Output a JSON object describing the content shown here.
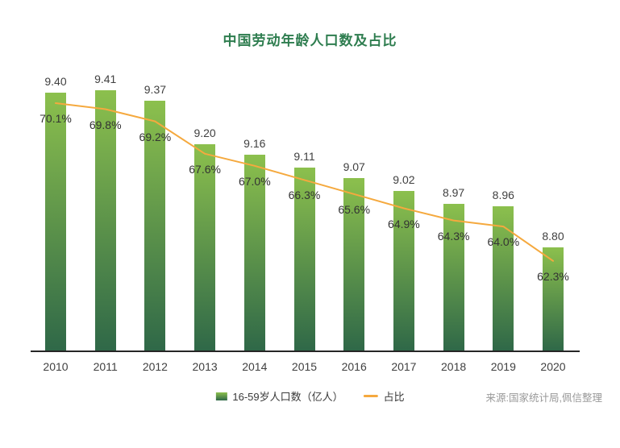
{
  "chart_data": {
    "type": "bar",
    "title": "中国劳动年龄人口数及占比",
    "categories": [
      "2010",
      "2011",
      "2012",
      "2013",
      "2014",
      "2015",
      "2016",
      "2017",
      "2018",
      "2019",
      "2020"
    ],
    "series": [
      {
        "name": "16-59岁人口数（亿人）",
        "type": "bar",
        "values": [
          9.4,
          9.41,
          9.37,
          9.2,
          9.16,
          9.11,
          9.07,
          9.02,
          8.97,
          8.96,
          8.8
        ],
        "data_labels": [
          "9.40",
          "9.41",
          "9.37",
          "9.20",
          "9.16",
          "9.11",
          "9.07",
          "9.02",
          "8.97",
          "8.96",
          "8.80"
        ]
      },
      {
        "name": "占比",
        "type": "line",
        "unit": "%",
        "values": [
          70.1,
          69.8,
          69.2,
          67.6,
          67.0,
          66.3,
          65.6,
          64.9,
          64.3,
          64.0,
          62.3
        ],
        "data_labels": [
          "70.1%",
          "69.8%",
          "69.2%",
          "67.6%",
          "67.0%",
          "66.3%",
          "65.6%",
          "64.9%",
          "64.3%",
          "64.0%",
          "62.3%"
        ]
      }
    ],
    "xlabel": "",
    "ylabel": "",
    "y_axis_visible": false,
    "grid": false,
    "legend_position": "bottom",
    "source": "来源:国家统计局,佩信整理",
    "colors": {
      "bar_gradient_top": "#8CC04D",
      "bar_gradient_bottom": "#2F6848",
      "line": "#F5A93E",
      "title": "#2E7D4F",
      "data_label": "#404040",
      "pct_label": "#333333",
      "axis_line": "#262626",
      "source_text": "#999999",
      "legend_text": "#3A3A3A"
    }
  }
}
